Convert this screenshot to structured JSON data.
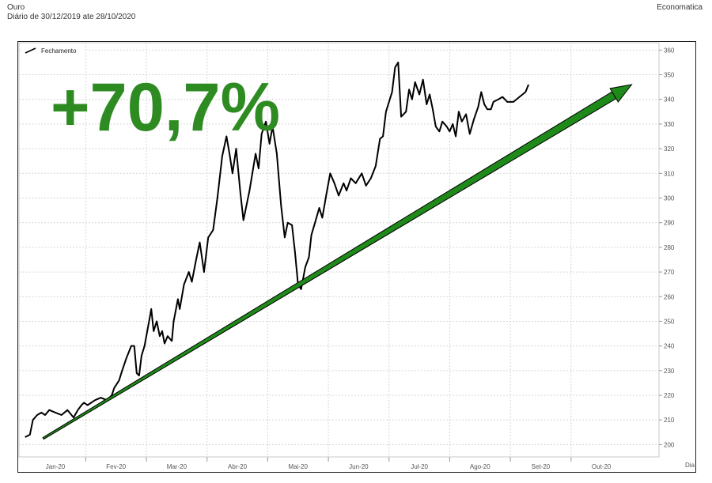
{
  "header": {
    "title": "Ouro",
    "subtitle": "Diário de 30/12/2019 ate 28/10/2020",
    "source": "Economatica"
  },
  "annotation": {
    "text": "+70,7%",
    "color": "#2e8b22"
  },
  "trend_arrow": {
    "from": {
      "x": 0.3,
      "y": 202.5
    },
    "to": {
      "x": 10.0,
      "y": 346
    },
    "color": "#1f8a1a"
  },
  "chart_data": {
    "type": "line",
    "legend": {
      "label": "Fechamento",
      "placement": "top-left"
    },
    "x_unit_label": "Dia",
    "x_ticks": [
      {
        "label": "Jan-20",
        "x": 0.5
      },
      {
        "label": "Fev-20",
        "x": 1.5
      },
      {
        "label": "Mar-20",
        "x": 2.5
      },
      {
        "label": "Abr-20",
        "x": 3.5
      },
      {
        "label": "Mai-20",
        "x": 4.5
      },
      {
        "label": "Jun-20",
        "x": 5.5
      },
      {
        "label": "Jul-20",
        "x": 6.5
      },
      {
        "label": "Ago-20",
        "x": 7.5
      },
      {
        "label": "Set-20",
        "x": 8.5
      },
      {
        "label": "Out-20",
        "x": 9.5
      }
    ],
    "x_boundaries": [
      1,
      2,
      3,
      4,
      5,
      6,
      7,
      8,
      9
    ],
    "xlim": [
      -0.1,
      10.45
    ],
    "ylim": [
      195,
      363
    ],
    "y_ticks": [
      200,
      210,
      220,
      230,
      240,
      250,
      260,
      270,
      280,
      290,
      300,
      310,
      320,
      330,
      340,
      350,
      360
    ],
    "grid": true,
    "line_color": "#000000",
    "series": [
      {
        "name": "Fechamento",
        "points": [
          [
            0.0,
            203
          ],
          [
            0.08,
            204
          ],
          [
            0.13,
            210
          ],
          [
            0.2,
            212
          ],
          [
            0.27,
            213
          ],
          [
            0.33,
            212
          ],
          [
            0.4,
            214
          ],
          [
            0.5,
            213
          ],
          [
            0.6,
            212
          ],
          [
            0.7,
            214
          ],
          [
            0.8,
            211
          ],
          [
            0.87,
            214
          ],
          [
            0.93,
            216
          ],
          [
            0.97,
            217
          ],
          [
            1.03,
            216
          ],
          [
            1.15,
            218
          ],
          [
            1.25,
            219
          ],
          [
            1.35,
            218
          ],
          [
            1.43,
            220
          ],
          [
            1.47,
            223
          ],
          [
            1.55,
            226
          ],
          [
            1.6,
            230
          ],
          [
            1.67,
            235
          ],
          [
            1.75,
            240
          ],
          [
            1.8,
            240
          ],
          [
            1.84,
            229
          ],
          [
            1.88,
            228
          ],
          [
            1.92,
            236
          ],
          [
            1.97,
            240
          ],
          [
            2.03,
            248
          ],
          [
            2.08,
            255
          ],
          [
            2.12,
            246
          ],
          [
            2.17,
            250
          ],
          [
            2.22,
            244
          ],
          [
            2.26,
            246
          ],
          [
            2.3,
            241
          ],
          [
            2.35,
            244
          ],
          [
            2.42,
            242
          ],
          [
            2.45,
            250
          ],
          [
            2.52,
            259
          ],
          [
            2.55,
            255
          ],
          [
            2.62,
            265
          ],
          [
            2.7,
            270
          ],
          [
            2.75,
            266
          ],
          [
            2.82,
            275
          ],
          [
            2.88,
            282
          ],
          [
            2.95,
            270
          ],
          [
            3.02,
            284
          ],
          [
            3.1,
            287
          ],
          [
            3.17,
            300
          ],
          [
            3.25,
            317
          ],
          [
            3.32,
            325
          ],
          [
            3.37,
            318
          ],
          [
            3.42,
            310
          ],
          [
            3.48,
            320
          ],
          [
            3.55,
            302
          ],
          [
            3.6,
            291
          ],
          [
            3.7,
            303
          ],
          [
            3.8,
            318
          ],
          [
            3.85,
            312
          ],
          [
            3.9,
            326
          ],
          [
            3.97,
            331
          ],
          [
            4.03,
            322
          ],
          [
            4.08,
            329
          ],
          [
            4.15,
            318
          ],
          [
            4.22,
            297
          ],
          [
            4.28,
            284
          ],
          [
            4.33,
            290
          ],
          [
            4.4,
            289
          ],
          [
            4.45,
            278
          ],
          [
            4.5,
            265
          ],
          [
            4.55,
            263
          ],
          [
            4.62,
            272
          ],
          [
            4.68,
            276
          ],
          [
            4.72,
            285
          ],
          [
            4.78,
            290
          ],
          [
            4.85,
            296
          ],
          [
            4.9,
            292
          ],
          [
            4.97,
            302
          ],
          [
            5.03,
            310
          ],
          [
            5.1,
            306
          ],
          [
            5.17,
            301
          ],
          [
            5.25,
            306
          ],
          [
            5.3,
            303
          ],
          [
            5.37,
            308
          ],
          [
            5.45,
            306
          ],
          [
            5.55,
            310
          ],
          [
            5.62,
            305
          ],
          [
            5.7,
            308
          ],
          [
            5.78,
            313
          ],
          [
            5.85,
            324
          ],
          [
            5.9,
            325
          ],
          [
            5.95,
            335
          ],
          [
            6.05,
            343
          ],
          [
            6.1,
            353
          ],
          [
            6.15,
            355
          ],
          [
            6.2,
            333
          ],
          [
            6.28,
            335
          ],
          [
            6.33,
            344
          ],
          [
            6.38,
            340
          ],
          [
            6.43,
            347
          ],
          [
            6.5,
            342
          ],
          [
            6.56,
            348
          ],
          [
            6.62,
            338
          ],
          [
            6.67,
            342
          ],
          [
            6.72,
            336
          ],
          [
            6.77,
            329
          ],
          [
            6.83,
            327
          ],
          [
            6.88,
            331
          ],
          [
            6.95,
            329
          ],
          [
            7.0,
            327
          ],
          [
            7.05,
            330
          ],
          [
            7.1,
            325
          ],
          [
            7.15,
            335
          ],
          [
            7.2,
            331
          ],
          [
            7.27,
            334
          ],
          [
            7.33,
            326
          ],
          [
            7.4,
            332
          ],
          [
            7.47,
            337
          ],
          [
            7.52,
            343
          ],
          [
            7.57,
            338
          ],
          [
            7.62,
            336
          ],
          [
            7.68,
            336
          ],
          [
            7.72,
            339
          ],
          [
            7.8,
            340
          ],
          [
            7.87,
            341
          ],
          [
            7.95,
            339
          ],
          [
            8.05,
            339
          ],
          [
            8.15,
            341
          ],
          [
            8.25,
            343
          ],
          [
            8.3,
            346
          ]
        ]
      }
    ]
  }
}
